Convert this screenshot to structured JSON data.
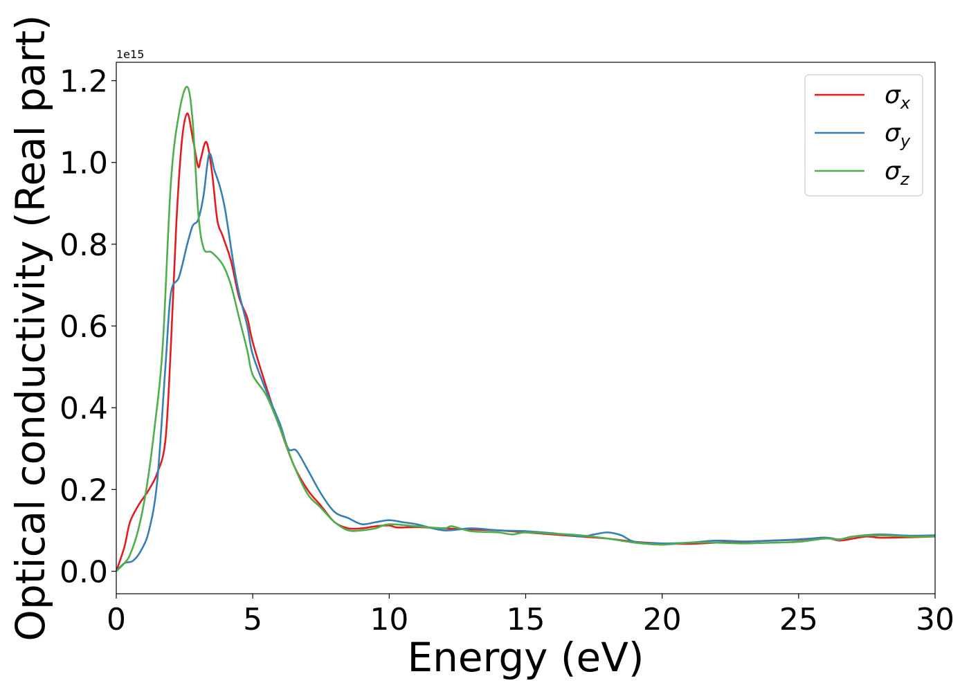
{
  "chart_data": {
    "type": "line",
    "xlabel": "Energy (eV)",
    "ylabel": "Optical conductivity (Real part)",
    "y_offset_text": "1e15",
    "xlim": [
      0,
      30
    ],
    "ylim": [
      -0.055,
      1.245
    ],
    "x_ticks": [
      0,
      5,
      10,
      15,
      20,
      25,
      30
    ],
    "x_tick_labels": [
      "0",
      "5",
      "10",
      "15",
      "20",
      "25",
      "30"
    ],
    "y_ticks": [
      0.0,
      0.2,
      0.4,
      0.6,
      0.8,
      1.0,
      1.2
    ],
    "y_tick_labels": [
      "0.0",
      "0.2",
      "0.4",
      "0.6",
      "0.8",
      "1.0",
      "1.2"
    ],
    "grid": false,
    "legend_position": "top-right",
    "series": [
      {
        "name": "σx",
        "symbol": "σ",
        "subscript": "x",
        "color": "#e41a1c",
        "points": [
          [
            0,
            0
          ],
          [
            0.3,
            0.06
          ],
          [
            0.5,
            0.12
          ],
          [
            0.8,
            0.16
          ],
          [
            1.0,
            0.18
          ],
          [
            1.2,
            0.2
          ],
          [
            1.5,
            0.24
          ],
          [
            1.8,
            0.32
          ],
          [
            2.0,
            0.55
          ],
          [
            2.2,
            0.85
          ],
          [
            2.4,
            1.05
          ],
          [
            2.6,
            1.12
          ],
          [
            2.8,
            1.06
          ],
          [
            3.0,
            0.99
          ],
          [
            3.1,
            1.01
          ],
          [
            3.3,
            1.05
          ],
          [
            3.5,
            0.98
          ],
          [
            3.7,
            0.86
          ],
          [
            3.9,
            0.82
          ],
          [
            4.2,
            0.76
          ],
          [
            4.5,
            0.67
          ],
          [
            4.8,
            0.62
          ],
          [
            5.0,
            0.56
          ],
          [
            5.5,
            0.45
          ],
          [
            6.0,
            0.35
          ],
          [
            6.5,
            0.26
          ],
          [
            7.0,
            0.2
          ],
          [
            7.5,
            0.16
          ],
          [
            8.0,
            0.12
          ],
          [
            8.5,
            0.105
          ],
          [
            9.0,
            0.105
          ],
          [
            9.5,
            0.11
          ],
          [
            10.0,
            0.112
          ],
          [
            10.3,
            0.107
          ],
          [
            11,
            0.108
          ],
          [
            12,
            0.105
          ],
          [
            13,
            0.102
          ],
          [
            14,
            0.1
          ],
          [
            15,
            0.095
          ],
          [
            16,
            0.09
          ],
          [
            17,
            0.085
          ],
          [
            18,
            0.08
          ],
          [
            19,
            0.072
          ],
          [
            20,
            0.068
          ],
          [
            21,
            0.067
          ],
          [
            22,
            0.07
          ],
          [
            23,
            0.072
          ],
          [
            24,
            0.075
          ],
          [
            25,
            0.077
          ],
          [
            25.5,
            0.08
          ],
          [
            26,
            0.082
          ],
          [
            26.5,
            0.075
          ],
          [
            27,
            0.08
          ],
          [
            27.5,
            0.085
          ],
          [
            28,
            0.082
          ],
          [
            29,
            0.083
          ],
          [
            30,
            0.085
          ]
        ]
      },
      {
        "name": "σy",
        "symbol": "σ",
        "subscript": "y",
        "color": "#377eb8",
        "points": [
          [
            0,
            0
          ],
          [
            0.3,
            0.02
          ],
          [
            0.6,
            0.025
          ],
          [
            0.9,
            0.05
          ],
          [
            1.2,
            0.1
          ],
          [
            1.5,
            0.22
          ],
          [
            1.8,
            0.5
          ],
          [
            2.0,
            0.68
          ],
          [
            2.3,
            0.72
          ],
          [
            2.6,
            0.8
          ],
          [
            2.8,
            0.845
          ],
          [
            3.0,
            0.86
          ],
          [
            3.2,
            0.92
          ],
          [
            3.4,
            1.02
          ],
          [
            3.6,
            0.98
          ],
          [
            3.8,
            0.94
          ],
          [
            4.0,
            0.88
          ],
          [
            4.3,
            0.75
          ],
          [
            4.5,
            0.68
          ],
          [
            4.8,
            0.6
          ],
          [
            5.0,
            0.53
          ],
          [
            5.5,
            0.44
          ],
          [
            6.0,
            0.36
          ],
          [
            6.3,
            0.3
          ],
          [
            6.6,
            0.295
          ],
          [
            7.0,
            0.25
          ],
          [
            7.5,
            0.19
          ],
          [
            8.0,
            0.145
          ],
          [
            8.5,
            0.13
          ],
          [
            9.0,
            0.115
          ],
          [
            9.5,
            0.12
          ],
          [
            10.0,
            0.125
          ],
          [
            10.5,
            0.12
          ],
          [
            11,
            0.115
          ],
          [
            12,
            0.1
          ],
          [
            13,
            0.105
          ],
          [
            14,
            0.1
          ],
          [
            15,
            0.098
          ],
          [
            16,
            0.093
          ],
          [
            17,
            0.085
          ],
          [
            17.5,
            0.09
          ],
          [
            18,
            0.095
          ],
          [
            18.5,
            0.088
          ],
          [
            19,
            0.072
          ],
          [
            20,
            0.068
          ],
          [
            21,
            0.07
          ],
          [
            22,
            0.075
          ],
          [
            23,
            0.073
          ],
          [
            24,
            0.075
          ],
          [
            25,
            0.078
          ],
          [
            26,
            0.082
          ],
          [
            26.5,
            0.078
          ],
          [
            27,
            0.085
          ],
          [
            28,
            0.09
          ],
          [
            29,
            0.087
          ],
          [
            30,
            0.088
          ]
        ]
      },
      {
        "name": "σz",
        "symbol": "σ",
        "subscript": "z",
        "color": "#4daf4a",
        "points": [
          [
            0,
            0
          ],
          [
            0.3,
            0.02
          ],
          [
            0.5,
            0.04
          ],
          [
            0.8,
            0.1
          ],
          [
            1.1,
            0.2
          ],
          [
            1.4,
            0.35
          ],
          [
            1.7,
            0.55
          ],
          [
            2.0,
            0.95
          ],
          [
            2.3,
            1.12
          ],
          [
            2.6,
            1.185
          ],
          [
            2.8,
            1.1
          ],
          [
            3.0,
            0.88
          ],
          [
            3.2,
            0.79
          ],
          [
            3.5,
            0.78
          ],
          [
            3.9,
            0.75
          ],
          [
            4.2,
            0.7
          ],
          [
            4.5,
            0.62
          ],
          [
            4.8,
            0.54
          ],
          [
            5.0,
            0.48
          ],
          [
            5.5,
            0.43
          ],
          [
            6.0,
            0.35
          ],
          [
            6.5,
            0.26
          ],
          [
            7.0,
            0.19
          ],
          [
            7.5,
            0.155
          ],
          [
            8.0,
            0.12
          ],
          [
            8.5,
            0.1
          ],
          [
            9.0,
            0.1
          ],
          [
            9.5,
            0.105
          ],
          [
            10.0,
            0.115
          ],
          [
            11,
            0.11
          ],
          [
            12,
            0.105
          ],
          [
            12.3,
            0.11
          ],
          [
            13,
            0.098
          ],
          [
            14,
            0.095
          ],
          [
            14.5,
            0.09
          ],
          [
            15,
            0.095
          ],
          [
            16,
            0.092
          ],
          [
            17,
            0.088
          ],
          [
            18,
            0.08
          ],
          [
            19,
            0.07
          ],
          [
            20,
            0.065
          ],
          [
            21,
            0.07
          ],
          [
            22,
            0.07
          ],
          [
            23,
            0.068
          ],
          [
            24,
            0.07
          ],
          [
            25,
            0.072
          ],
          [
            26,
            0.08
          ],
          [
            26.5,
            0.077
          ],
          [
            27,
            0.085
          ],
          [
            28,
            0.088
          ],
          [
            29,
            0.085
          ],
          [
            30,
            0.085
          ]
        ]
      }
    ]
  }
}
